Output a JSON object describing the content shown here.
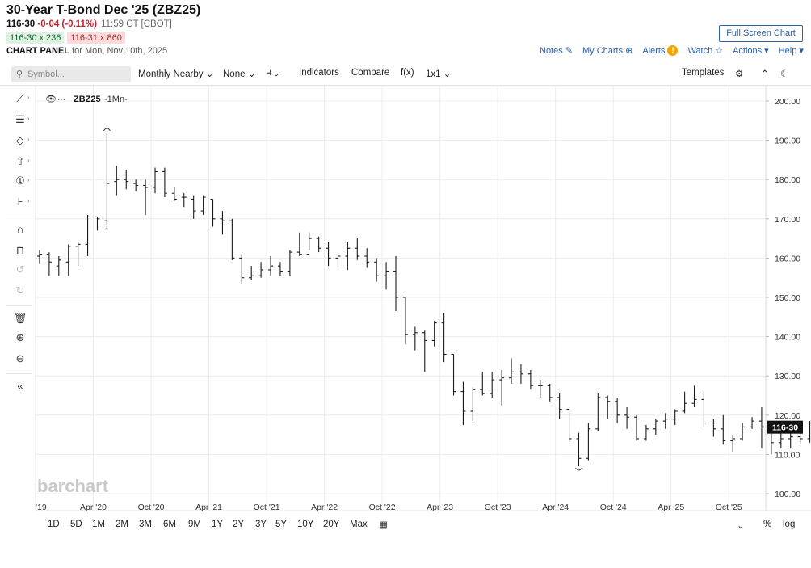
{
  "header": {
    "title": "30-Year T-Bond Dec '25 (ZBZ25)",
    "last": "116-30",
    "change": "-0-04 (-0.11%)",
    "time": "11:59 CT [CBOT]",
    "bid": "116-30 x 236",
    "ask": "116-31 x 860",
    "panel_label": "CHART PANEL",
    "panel_date": "for Mon, Nov 10th, 2025",
    "fullscreen_label": "Full Screen Chart"
  },
  "top_links": {
    "notes": "Notes",
    "my_charts": "My Charts",
    "alerts": "Alerts",
    "alerts_badge": "!",
    "watch": "Watch",
    "actions": "Actions",
    "help": "Help"
  },
  "toolbar": {
    "symbol_placeholder": "Symbol...",
    "period": "Monthly Nearby",
    "overlay": "None",
    "indicators": "Indicators",
    "compare": "Compare",
    "fx": "f(x)",
    "layout": "1x1",
    "templates": "Templates"
  },
  "legend": {
    "symbol": "ZBZ25",
    "interval": "-1Mn-"
  },
  "watermark": "barchart",
  "last_price_label": "116-30",
  "range_buttons": [
    "1D",
    "5D",
    "1M",
    "2M",
    "3M",
    "6M",
    "9M",
    "1Y",
    "2Y",
    "3Y",
    "5Y",
    "10Y",
    "20Y",
    "Max"
  ],
  "bottom_options": {
    "percent": "%",
    "log": "log"
  },
  "colors": {
    "link": "#2a5fa8",
    "down": "#c8212b",
    "bar": "#1a1a1a"
  },
  "chart_data": {
    "type": "ohlc",
    "interval": "monthly",
    "y_ticks": [
      "200.00",
      "190.00",
      "180.00",
      "170.00",
      "160.00",
      "150.00",
      "140.00",
      "130.00",
      "120.00",
      "110.00",
      "100.00"
    ],
    "x_ticks": [
      "'19",
      "Apr '20",
      "Oct '20",
      "Apr '21",
      "Oct '21",
      "Apr '22",
      "Oct '22",
      "Apr '23",
      "Oct '23",
      "Apr '24",
      "Oct '24",
      "Apr '25",
      "Oct '25"
    ],
    "ylim": [
      100,
      200
    ],
    "high_marker": 192.0,
    "low_marker": 107.0,
    "last": 116.94,
    "bars": [
      {
        "o": 160.5,
        "h": 162.0,
        "l": 158.5,
        "c": 161.0
      },
      {
        "o": 161.0,
        "h": 161.5,
        "l": 155.5,
        "c": 159.0
      },
      {
        "o": 158.0,
        "h": 160.5,
        "l": 155.5,
        "c": 159.5
      },
      {
        "o": 159.0,
        "h": 163.5,
        "l": 155.5,
        "c": 163.0
      },
      {
        "o": 163.0,
        "h": 164.0,
        "l": 158.0,
        "c": 163.5
      },
      {
        "o": 163.5,
        "h": 171.0,
        "l": 160.5,
        "c": 170.5
      },
      {
        "o": 170.5,
        "h": 170.5,
        "l": 167.0,
        "c": 170.0
      },
      {
        "o": 169.5,
        "h": 192.0,
        "l": 167.5,
        "c": 179.0
      },
      {
        "o": 179.5,
        "h": 183.5,
        "l": 176.0,
        "c": 180.0
      },
      {
        "o": 180.0,
        "h": 182.5,
        "l": 177.5,
        "c": 179.5
      },
      {
        "o": 179.0,
        "h": 180.0,
        "l": 177.0,
        "c": 178.5
      },
      {
        "o": 178.5,
        "h": 180.0,
        "l": 171.0,
        "c": 178.0
      },
      {
        "o": 178.0,
        "h": 183.0,
        "l": 176.5,
        "c": 182.0
      },
      {
        "o": 182.0,
        "h": 183.0,
        "l": 175.5,
        "c": 176.5
      },
      {
        "o": 176.5,
        "h": 178.0,
        "l": 174.5,
        "c": 175.0
      },
      {
        "o": 175.5,
        "h": 176.5,
        "l": 173.0,
        "c": 175.5
      },
      {
        "o": 175.0,
        "h": 176.0,
        "l": 170.0,
        "c": 172.0
      },
      {
        "o": 172.0,
        "h": 176.0,
        "l": 171.0,
        "c": 175.5
      },
      {
        "o": 175.0,
        "h": 175.0,
        "l": 168.0,
        "c": 170.0
      },
      {
        "o": 170.0,
        "h": 172.0,
        "l": 166.0,
        "c": 169.5
      },
      {
        "o": 169.5,
        "h": 170.0,
        "l": 159.5,
        "c": 160.0
      },
      {
        "o": 160.0,
        "h": 161.0,
        "l": 153.5,
        "c": 155.0
      },
      {
        "o": 155.0,
        "h": 158.0,
        "l": 154.5,
        "c": 155.5
      },
      {
        "o": 155.5,
        "h": 159.0,
        "l": 155.0,
        "c": 157.0
      },
      {
        "o": 157.0,
        "h": 160.5,
        "l": 155.5,
        "c": 158.0
      },
      {
        "o": 158.0,
        "h": 159.0,
        "l": 155.5,
        "c": 156.5
      },
      {
        "o": 156.5,
        "h": 162.0,
        "l": 155.5,
        "c": 161.5
      },
      {
        "o": 161.5,
        "h": 166.5,
        "l": 160.5,
        "c": 161.0
      },
      {
        "o": 161.0,
        "h": 166.5,
        "l": 162.0,
        "c": 165.0
      },
      {
        "o": 165.0,
        "h": 165.5,
        "l": 161.5,
        "c": 162.5
      },
      {
        "o": 162.5,
        "h": 164.0,
        "l": 158.0,
        "c": 160.0
      },
      {
        "o": 160.0,
        "h": 161.0,
        "l": 157.5,
        "c": 160.5
      },
      {
        "o": 160.5,
        "h": 164.0,
        "l": 157.0,
        "c": 162.5
      },
      {
        "o": 162.5,
        "h": 165.0,
        "l": 159.5,
        "c": 160.5
      },
      {
        "o": 160.5,
        "h": 162.5,
        "l": 157.5,
        "c": 159.0
      },
      {
        "o": 159.0,
        "h": 160.0,
        "l": 154.0,
        "c": 155.5
      },
      {
        "o": 155.5,
        "h": 159.0,
        "l": 152.0,
        "c": 156.5
      },
      {
        "o": 156.5,
        "h": 160.5,
        "l": 146.5,
        "c": 150.0
      },
      {
        "o": 150.0,
        "h": 150.0,
        "l": 138.0,
        "c": 140.5
      },
      {
        "o": 140.5,
        "h": 142.5,
        "l": 136.5,
        "c": 141.0
      },
      {
        "o": 141.0,
        "h": 141.5,
        "l": 131.0,
        "c": 139.0
      },
      {
        "o": 139.0,
        "h": 144.0,
        "l": 137.5,
        "c": 143.5
      },
      {
        "o": 143.5,
        "h": 146.0,
        "l": 133.5,
        "c": 135.5
      },
      {
        "o": 135.5,
        "h": 135.5,
        "l": 125.0,
        "c": 126.0
      },
      {
        "o": 126.0,
        "h": 128.5,
        "l": 117.5,
        "c": 121.0
      },
      {
        "o": 121.0,
        "h": 127.0,
        "l": 118.5,
        "c": 126.5
      },
      {
        "o": 126.5,
        "h": 131.0,
        "l": 125.0,
        "c": 125.5
      },
      {
        "o": 125.5,
        "h": 131.0,
        "l": 124.5,
        "c": 129.0
      },
      {
        "o": 129.0,
        "h": 131.5,
        "l": 122.5,
        "c": 129.5
      },
      {
        "o": 129.5,
        "h": 134.5,
        "l": 128.0,
        "c": 131.0
      },
      {
        "o": 131.0,
        "h": 133.0,
        "l": 128.0,
        "c": 130.5
      },
      {
        "o": 130.5,
        "h": 131.5,
        "l": 126.5,
        "c": 127.5
      },
      {
        "o": 127.5,
        "h": 129.0,
        "l": 124.5,
        "c": 127.5
      },
      {
        "o": 127.5,
        "h": 128.0,
        "l": 123.5,
        "c": 124.5
      },
      {
        "o": 124.5,
        "h": 125.5,
        "l": 119.0,
        "c": 121.5
      },
      {
        "o": 121.5,
        "h": 121.5,
        "l": 112.5,
        "c": 114.0
      },
      {
        "o": 114.0,
        "h": 115.5,
        "l": 107.0,
        "c": 109.0
      },
      {
        "o": 109.0,
        "h": 118.0,
        "l": 108.5,
        "c": 116.5
      },
      {
        "o": 116.5,
        "h": 125.5,
        "l": 116.0,
        "c": 124.5
      },
      {
        "o": 124.5,
        "h": 125.0,
        "l": 119.0,
        "c": 123.5
      },
      {
        "o": 123.5,
        "h": 124.5,
        "l": 118.0,
        "c": 120.0
      },
      {
        "o": 120.0,
        "h": 122.0,
        "l": 116.5,
        "c": 119.5
      },
      {
        "o": 119.5,
        "h": 120.0,
        "l": 113.5,
        "c": 114.0
      },
      {
        "o": 114.0,
        "h": 117.5,
        "l": 113.5,
        "c": 116.5
      },
      {
        "o": 116.5,
        "h": 119.0,
        "l": 115.0,
        "c": 118.5
      },
      {
        "o": 118.5,
        "h": 120.5,
        "l": 116.5,
        "c": 119.0
      },
      {
        "o": 119.0,
        "h": 121.5,
        "l": 117.5,
        "c": 121.0
      },
      {
        "o": 121.0,
        "h": 126.0,
        "l": 120.5,
        "c": 123.0
      },
      {
        "o": 123.0,
        "h": 127.5,
        "l": 122.0,
        "c": 124.0
      },
      {
        "o": 124.0,
        "h": 126.0,
        "l": 117.0,
        "c": 118.0
      },
      {
        "o": 118.0,
        "h": 119.0,
        "l": 114.5,
        "c": 116.5
      },
      {
        "o": 116.5,
        "h": 120.0,
        "l": 112.5,
        "c": 113.5
      },
      {
        "o": 113.5,
        "h": 115.0,
        "l": 110.5,
        "c": 114.0
      },
      {
        "o": 114.0,
        "h": 118.0,
        "l": 113.5,
        "c": 117.0
      },
      {
        "o": 117.0,
        "h": 119.5,
        "l": 116.5,
        "c": 118.5
      },
      {
        "o": 118.5,
        "h": 122.0,
        "l": 111.5,
        "c": 117.0
      },
      {
        "o": 117.0,
        "h": 117.0,
        "l": 110.0,
        "c": 113.0
      },
      {
        "o": 113.0,
        "h": 115.5,
        "l": 111.5,
        "c": 114.0
      },
      {
        "o": 114.0,
        "h": 116.0,
        "l": 111.5,
        "c": 114.5
      },
      {
        "o": 114.5,
        "h": 115.5,
        "l": 112.5,
        "c": 114.0
      },
      {
        "o": 114.0,
        "h": 118.5,
        "l": 113.0,
        "c": 118.0
      },
      {
        "o": 118.0,
        "h": 119.5,
        "l": 116.0,
        "c": 117.0
      },
      {
        "o": 117.0,
        "h": 118.0,
        "l": 115.5,
        "c": 116.94
      }
    ]
  }
}
